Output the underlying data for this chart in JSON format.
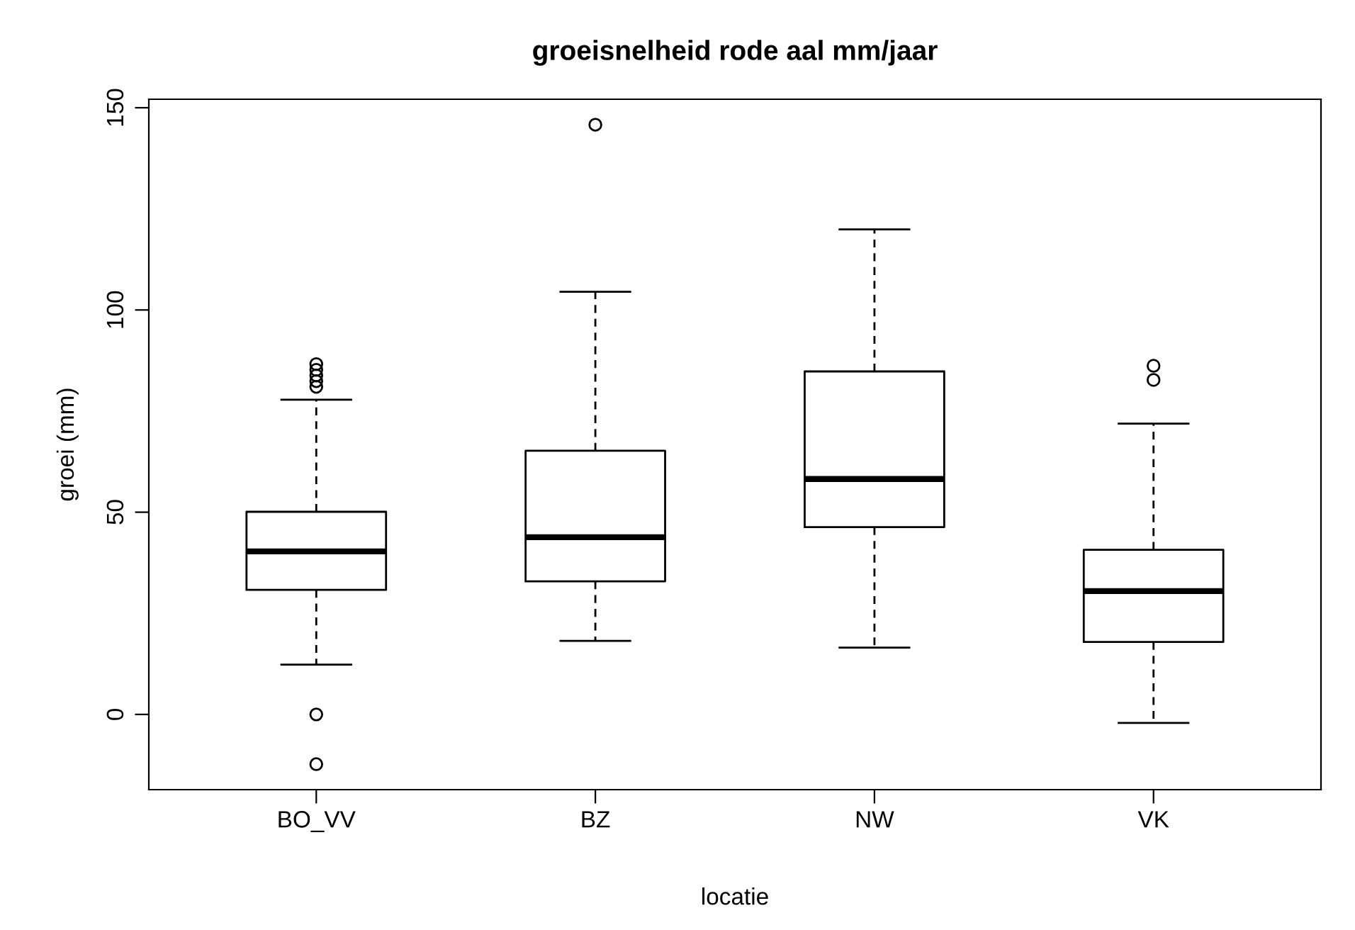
{
  "chart_data": {
    "type": "box",
    "title": "groeisnelheid rode aal mm/jaar",
    "xlabel": "locatie",
    "ylabel": "groei (mm)",
    "categories": [
      "BO_VV",
      "BZ",
      "NW",
      "VK"
    ],
    "boxes": [
      {
        "low": 12.3,
        "q1": 30.8,
        "median": 40.3,
        "q3": 50.1,
        "high": 77.8,
        "outliers": [
          86.6,
          85.2,
          83.8,
          82.4,
          81.0,
          0,
          -12.3
        ]
      },
      {
        "low": 18.2,
        "q1": 32.9,
        "median": 43.8,
        "q3": 65.2,
        "high": 104.5,
        "outliers": [
          145.8
        ]
      },
      {
        "low": 16.5,
        "q1": 46.3,
        "median": 58.2,
        "q3": 84.8,
        "high": 119.9
      },
      {
        "low": -2.1,
        "q1": 17.9,
        "median": 30.5,
        "q3": 40.7,
        "high": 71.9,
        "outliers": [
          86.2,
          82.7
        ]
      }
    ],
    "ylim": [
      -18.6,
      152.1
    ],
    "yticks": [
      0,
      50,
      100,
      150
    ],
    "grid": false,
    "color": "#000000"
  }
}
